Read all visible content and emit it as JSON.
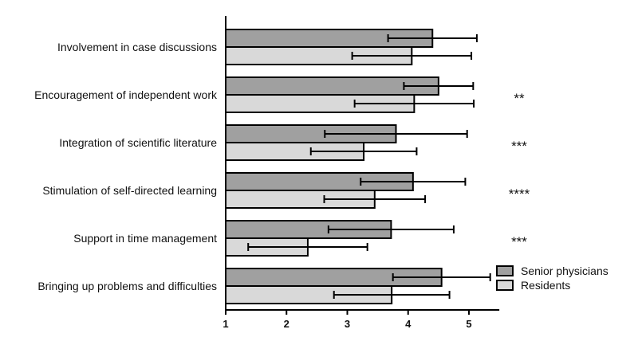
{
  "chart_data": {
    "type": "bar",
    "orientation": "horizontal",
    "categories": [
      "Involvement in case discussions",
      "Encouragement of independent work",
      "Integration of scientific literature",
      "Stimulation of self-directed learning",
      "Support in time management",
      "Bringing up problems and difficulties"
    ],
    "series": [
      {
        "name": "Senior physicians",
        "color": "#a0a0a0",
        "values": [
          4.4,
          4.5,
          3.8,
          4.08,
          3.72,
          4.55
        ],
        "error": [
          0.73,
          0.57,
          1.17,
          0.86,
          1.03,
          0.8
        ]
      },
      {
        "name": "Residents",
        "color": "#d9d9d9",
        "values": [
          4.06,
          4.1,
          3.27,
          3.45,
          2.35,
          3.73
        ],
        "error": [
          0.98,
          0.98,
          0.87,
          0.83,
          0.98,
          0.95
        ]
      }
    ],
    "significance": [
      "",
      "**",
      "***",
      "****",
      "***",
      ""
    ],
    "xticks": [
      "1",
      "2",
      "3",
      "4",
      "5"
    ],
    "xlim": [
      1,
      5.5
    ],
    "legend_position": "bottom-right",
    "grid": false
  }
}
